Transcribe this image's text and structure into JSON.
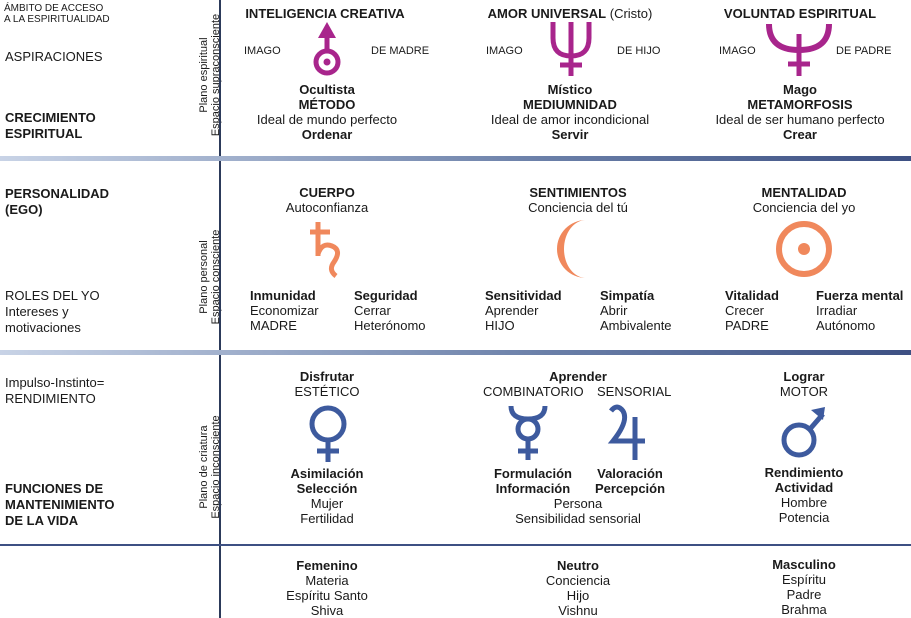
{
  "header_scope": [
    "ÁMBITO DE ACCESO",
    "A LA ESPIRITUALIDAD"
  ],
  "left_labels": {
    "aspiraciones": "ASPIRACIONES",
    "crecimiento": [
      "CRECIMIENTO",
      "ESPIRITUAL"
    ],
    "personalidad": [
      "PERSONALIDAD",
      "(EGO)"
    ],
    "roles": [
      "ROLES DEL YO",
      "Intereses y",
      "motivaciones"
    ],
    "impulso": [
      "Impulso-Instinto=",
      "RENDIMIENTO"
    ],
    "funciones": [
      "FUNCIONES DE",
      "MANTENIMIENTO",
      "DE LA VIDA"
    ]
  },
  "planes": {
    "spiritual": [
      "Plano espiritual",
      "Espacio supraconsciente"
    ],
    "personal": [
      "Plano personal",
      "Espacio consciente"
    ],
    "creature": [
      "Plano de criatura",
      "Espacio inconsciente"
    ]
  },
  "spiritual": {
    "col1": {
      "title": "INTELIGENCIA CREATIVA",
      "title_note": "",
      "left": "IMAGO",
      "right": "DE MADRE",
      "l1": "Ocultista",
      "l2": "MÉTODO",
      "l3": "Ideal de mundo perfecto",
      "l4": "Ordenar",
      "icon": "uranus-icon"
    },
    "col2": {
      "title": "AMOR UNIVERSAL",
      "title_note": "(Cristo)",
      "left": "IMAGO",
      "right": "DE HIJO",
      "l1": "Místico",
      "l2": "MEDIUMNIDAD",
      "l3": "Ideal de amor incondicional",
      "l4": "Servir",
      "icon": "neptune-icon"
    },
    "col3": {
      "title": "VOLUNTAD ESPIRITUAL",
      "title_note": "",
      "left": "IMAGO",
      "right": "DE PADRE",
      "l1": "Mago",
      "l2": "METAMORFOSIS",
      "l3": "Ideal de ser humano perfecto",
      "l4": "Crear",
      "icon": "pluto-icon"
    }
  },
  "personal": {
    "col1": {
      "title": "CUERPO",
      "sub": "Autoconfianza",
      "icon": "saturn-icon",
      "a": [
        "Inmunidad",
        "Economizar",
        "MADRE"
      ],
      "b": [
        "Seguridad",
        "Cerrar",
        "Heterónomo"
      ]
    },
    "col2": {
      "title": "SENTIMIENTOS",
      "sub": "Conciencia del tú",
      "icon": "moon-icon",
      "a": [
        "Sensitividad",
        "Aprender",
        "HIJO"
      ],
      "b": [
        "Simpatía",
        "Abrir",
        "Ambivalente"
      ]
    },
    "col3": {
      "title": "MENTALIDAD",
      "sub": "Conciencia del yo",
      "icon": "sun-icon",
      "a": [
        "Vitalidad",
        "Crecer",
        "PADRE"
      ],
      "b": [
        "Fuerza mental",
        "Irradiar",
        "Autónomo"
      ]
    }
  },
  "creature": {
    "col1": {
      "title": "Disfrutar",
      "sub": "ESTÉTICO",
      "icon": "venus-icon",
      "lines": [
        "Asimilación",
        "Selección",
        "Mujer",
        "Fertilidad"
      ]
    },
    "col2": {
      "title": "Aprender",
      "sub_a": "COMBINATORIO",
      "sub_b": "SENSORIAL",
      "icon_a": "mercury-icon",
      "icon_b": "jupiter-icon",
      "a": [
        "Formulación",
        "Información"
      ],
      "b": [
        "Valoración",
        "Percepción"
      ],
      "shared": [
        "Persona",
        "Sensibilidad sensorial"
      ]
    },
    "col3": {
      "title": "Lograr",
      "sub": "MOTOR",
      "icon": "mars-icon",
      "lines": [
        "Rendimiento",
        "Actividad",
        "Hombre",
        "Potencia"
      ]
    }
  },
  "polarity": {
    "col1": [
      "Femenino",
      "Materia",
      "Espíritu Santo",
      "Shiva"
    ],
    "col2": [
      "Neutro",
      "Conciencia",
      "Hijo",
      "Vishnu"
    ],
    "col3": [
      "Masculino",
      "Espíritu",
      "Padre",
      "Brahma"
    ]
  },
  "colors": {
    "spiritual": "#a8258c",
    "personal": "#f0885c",
    "creature": "#3d5a9e",
    "band": "#4a5f8a"
  }
}
